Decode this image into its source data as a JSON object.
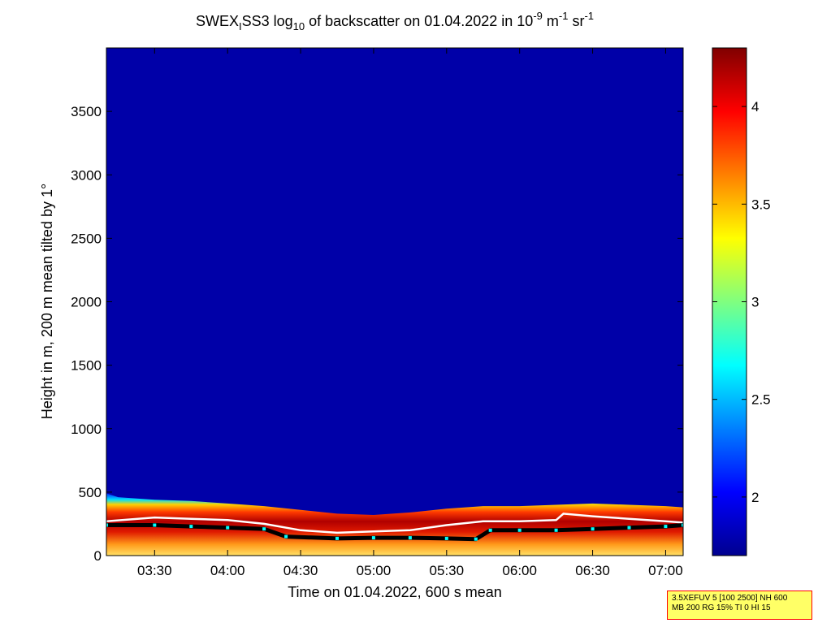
{
  "title": {
    "main": "SWEX",
    "sub": "I",
    "after_sub": "SS3 log",
    "log_sub": "10",
    "rest": " of backscatter on 01.04.2022 in 10",
    "exp1": "-9",
    "unit1": " m",
    "exp2": "-1",
    "unit2": " sr",
    "exp3": "-1"
  },
  "chart_data": {
    "type": "heatmap",
    "xlabel": "Time on 01.04.2022, 600 s mean",
    "ylabel": "Height in m, 200 m mean tilted by 1°",
    "x_range_hours": [
      3.17,
      7.12
    ],
    "x_ticks": [
      "03:30",
      "04:00",
      "04:30",
      "05:00",
      "05:30",
      "06:00",
      "06:30",
      "07:00"
    ],
    "x_tick_values_hours": [
      3.5,
      4.0,
      4.5,
      5.0,
      5.5,
      6.0,
      6.5,
      7.0
    ],
    "ylim": [
      0,
      4000
    ],
    "y_ticks": [
      0,
      500,
      1000,
      1500,
      2000,
      2500,
      3000,
      3500
    ],
    "colorbar": {
      "range": [
        1.7,
        4.3
      ],
      "ticks": [
        2,
        2.5,
        3,
        3.5,
        4
      ],
      "colormap": "jet"
    },
    "background_value": 1.75,
    "layer_top_m": [
      [
        3.17,
        490
      ],
      [
        3.25,
        460
      ],
      [
        3.5,
        440
      ],
      [
        3.75,
        430
      ],
      [
        4.0,
        410
      ],
      [
        4.25,
        390
      ],
      [
        4.5,
        360
      ],
      [
        4.75,
        330
      ],
      [
        5.0,
        320
      ],
      [
        5.25,
        340
      ],
      [
        5.5,
        370
      ],
      [
        5.75,
        390
      ],
      [
        6.0,
        390
      ],
      [
        6.25,
        400
      ],
      [
        6.5,
        410
      ],
      [
        6.75,
        400
      ],
      [
        7.0,
        390
      ],
      [
        7.12,
        380
      ]
    ],
    "mixing_layer_white_m": [
      [
        3.17,
        270
      ],
      [
        3.5,
        300
      ],
      [
        3.75,
        290
      ],
      [
        4.0,
        280
      ],
      [
        4.25,
        250
      ],
      [
        4.5,
        200
      ],
      [
        4.75,
        180
      ],
      [
        5.0,
        190
      ],
      [
        5.25,
        200
      ],
      [
        5.5,
        240
      ],
      [
        5.75,
        270
      ],
      [
        6.0,
        270
      ],
      [
        6.25,
        280
      ],
      [
        6.3,
        330
      ],
      [
        6.5,
        310
      ],
      [
        6.75,
        290
      ],
      [
        7.0,
        270
      ],
      [
        7.12,
        260
      ]
    ],
    "mixing_layer_black_m": [
      [
        3.17,
        240
      ],
      [
        3.5,
        240
      ],
      [
        3.75,
        230
      ],
      [
        4.0,
        220
      ],
      [
        4.25,
        210
      ],
      [
        4.4,
        150
      ],
      [
        4.75,
        135
      ],
      [
        5.0,
        140
      ],
      [
        5.25,
        140
      ],
      [
        5.5,
        135
      ],
      [
        5.7,
        130
      ],
      [
        5.8,
        200
      ],
      [
        6.0,
        200
      ],
      [
        6.25,
        200
      ],
      [
        6.5,
        210
      ],
      [
        6.75,
        220
      ],
      [
        7.0,
        230
      ],
      [
        7.12,
        240
      ]
    ]
  },
  "info": {
    "line1": "3.5XEFUV 5 [100 2500] NH 600",
    "line2": "MB 200 RG 15% TI 0 HI 15"
  }
}
